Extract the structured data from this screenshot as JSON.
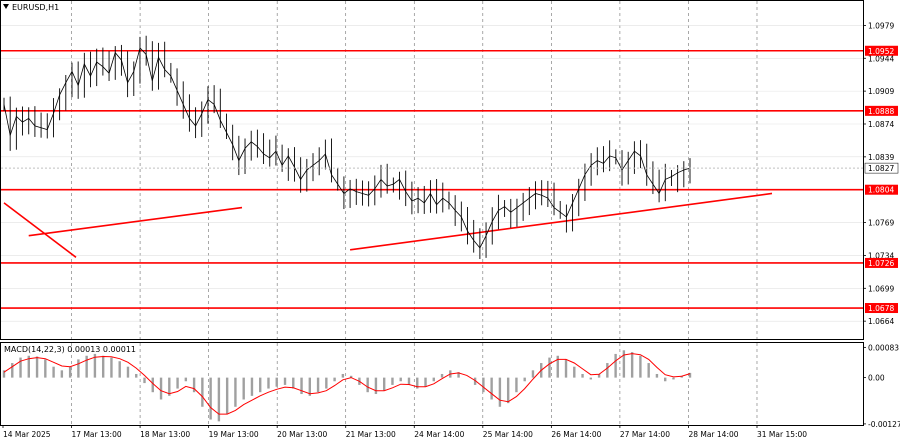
{
  "chart_data": [
    {
      "type": "line",
      "symbol": "EURUSD,H1",
      "title": "EURUSD,H1",
      "ylim": [
        1.0645,
        1.1005
      ],
      "y_ticks": [
        "1.0979",
        "1.0944",
        "1.0909",
        "1.0874",
        "1.0839",
        "1.0769",
        "1.0734",
        "1.0699",
        "1.0664"
      ],
      "x_ticks": [
        "14 Mar 2025",
        "17 Mar 13:00",
        "18 Mar 13:00",
        "19 Mar 13:00",
        "20 Mar 13:00",
        "21 Mar 13:00",
        "24 Mar 14:00",
        "25 Mar 14:00",
        "26 Mar 14:00",
        "27 Mar 14:00",
        "28 Mar 14:00",
        "31 Mar 15:00"
      ],
      "current_price": "1.0827",
      "levels": [
        "1.0952",
        "1.0888",
        "1.0804",
        "1.0726",
        "1.0678"
      ],
      "level_color": "#ff0000",
      "series": [
        {
          "values": [
            1.0895,
            1.0862,
            1.0882,
            1.0876,
            1.088,
            1.0872,
            1.087,
            1.0868,
            1.0885,
            1.0905,
            1.0918,
            1.093,
            1.0915,
            1.0938,
            1.0925,
            1.094,
            1.0935,
            1.0928,
            1.095,
            1.0942,
            1.0918,
            1.093,
            1.0955,
            1.0948,
            1.092,
            1.0945,
            1.0932,
            1.0925,
            1.091,
            1.0895,
            1.088,
            1.0872,
            1.0885,
            1.09,
            1.0895,
            1.0878,
            1.0865,
            1.0852,
            1.0835,
            1.0848,
            1.0855,
            1.085,
            1.0842,
            1.0838,
            1.0845,
            1.083,
            1.084,
            1.0828,
            1.0815,
            1.0825,
            1.083,
            1.0835,
            1.0842,
            1.082,
            1.081,
            1.08,
            1.0805,
            1.0802,
            1.08,
            1.0798,
            1.0805,
            1.0815,
            1.0808,
            1.081,
            1.0815,
            1.0802,
            1.0792,
            1.0795,
            1.079,
            1.08,
            1.0788,
            1.0795,
            1.079,
            1.0782,
            1.0775,
            1.076,
            1.075,
            1.0742,
            1.0755,
            1.077,
            1.0782,
            1.0786,
            1.078,
            1.0785,
            1.079,
            1.0795,
            1.08,
            1.0798,
            1.0795,
            1.0785,
            1.078,
            1.0775,
            1.079,
            1.0805,
            1.082,
            1.083,
            1.0835,
            1.0832,
            1.084,
            1.0838,
            1.0825,
            1.0835,
            1.0845,
            1.084,
            1.082,
            1.081,
            1.08,
            1.0815,
            1.0818,
            1.0822,
            1.0825,
            1.0827
          ],
          "color": "#000000"
        },
        {
          "values": [
            [
              1.079,
              1.0732
            ],
            [
              1.0755,
              1.0785
            ],
            [
              1.074,
              1.08
            ]
          ],
          "color": "#ff0000"
        }
      ]
    },
    {
      "type": "bar",
      "title": "MACD(14,22,3) 0.00013 0.00011",
      "ylim": [
        -0.0013,
        0.00095
      ],
      "y_ticks": [
        "0.00083",
        "0.00",
        "-0.00127"
      ],
      "histogram_color": "#a0a0a0",
      "signal_color": "#ff0000",
      "histogram": [
        0.0002,
        0.0004,
        0.00055,
        0.0006,
        0.00058,
        0.0005,
        0.0003,
        0.0002,
        0.0003,
        0.0005,
        0.0006,
        0.00065,
        0.0006,
        0.00055,
        0.00045,
        0.0003,
        0.0001,
        -0.00015,
        -0.0004,
        -0.0006,
        -0.0005,
        -0.0003,
        -0.0001,
        -0.0004,
        -0.0008,
        -0.00115,
        -0.0012,
        -0.001,
        -0.0008,
        -0.0006,
        -0.0005,
        -0.0004,
        -0.0003,
        -0.00025,
        -0.0002,
        -0.0003,
        -0.00045,
        -0.0005,
        -0.0004,
        -0.0003,
        -0.0001,
        0.0001,
        5e-05,
        -0.0002,
        -0.0004,
        -0.00045,
        -0.00035,
        -0.0002,
        -0.0001,
        -0.0002,
        -0.0003,
        -0.00025,
        -0.0001,
        0.0001,
        0.0002,
        0.00015,
        0.0,
        -0.0002,
        -0.0004,
        -0.0006,
        -0.0008,
        -0.0007,
        -0.0004,
        -0.0001,
        0.0002,
        0.0004,
        0.00055,
        0.0006,
        0.0005,
        0.0003,
        0.0001,
        -5e-05,
        0.0001,
        0.0004,
        0.00065,
        0.00075,
        0.0007,
        0.0006,
        0.0004,
        0.0001,
        -0.0001,
        -5e-05,
        5e-05,
        0.00013
      ],
      "signal": [
        0.00015,
        0.0003,
        0.00045,
        0.00052,
        0.00055,
        0.00052,
        0.00042,
        0.00032,
        0.0003,
        0.00038,
        0.00048,
        0.00056,
        0.00058,
        0.00057,
        0.00052,
        0.00042,
        0.00026,
        6e-05,
        -0.00016,
        -0.00036,
        -0.00044,
        -0.00038,
        -0.00024,
        -0.0003,
        -0.00052,
        -0.00082,
        -0.001,
        -0.001,
        -0.0009,
        -0.00074,
        -0.00062,
        -0.0005,
        -0.0004,
        -0.00032,
        -0.00026,
        -0.00028,
        -0.00036,
        -0.00044,
        -0.00042,
        -0.00036,
        -0.00022,
        -6e-05,
        0.0,
        -0.0001,
        -0.00026,
        -0.00036,
        -0.00036,
        -0.00028,
        -0.00018,
        -0.00019,
        -0.00025,
        -0.00025,
        -0.00017,
        -3e-05,
        0.0001,
        0.00013,
        6e-05,
        -8e-05,
        -0.00026,
        -0.00044,
        -0.00062,
        -0.00066,
        -0.00052,
        -0.0003,
        -4e-05,
        0.0002,
        0.00038,
        0.0005,
        0.0005,
        0.0004,
        0.00024,
        8e-05,
        9e-05,
        0.00026,
        0.00046,
        0.00062,
        0.00066,
        0.00063,
        0.0005,
        0.00028,
        8e-05,
        2e-05,
        4e-05,
        0.00011
      ]
    }
  ]
}
